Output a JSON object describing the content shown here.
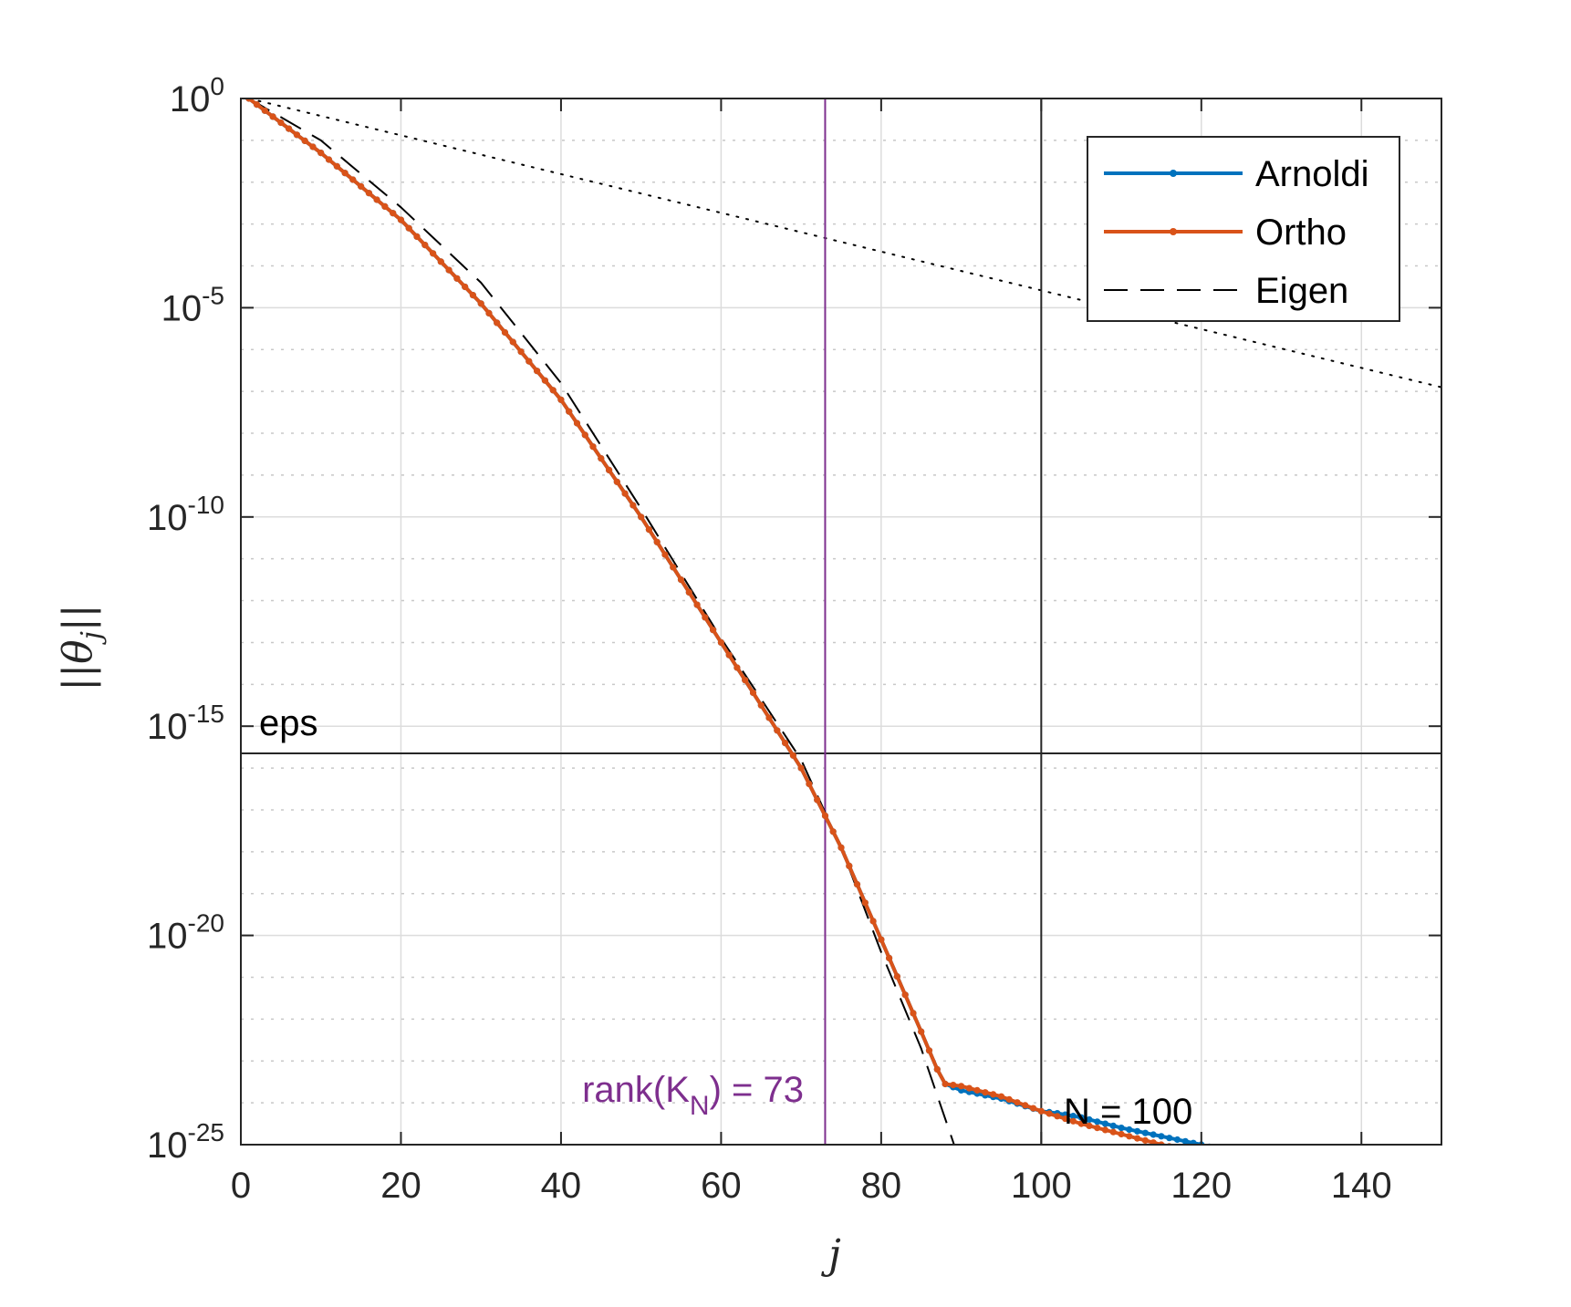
{
  "chart_data": {
    "type": "line",
    "yscale": "log",
    "xlim": [
      0,
      150
    ],
    "ylim": [
      1e-25,
      1
    ],
    "xticks": [
      0,
      20,
      40,
      60,
      80,
      100,
      120,
      140
    ],
    "xtick_labels": [
      "0",
      "20",
      "40",
      "60",
      "80",
      "100",
      "120",
      "140"
    ],
    "yticks": [
      1e-25,
      1e-20,
      1e-15,
      1e-10,
      1e-05,
      1
    ],
    "ytick_labels": [
      {
        "base": "10",
        "exp": "-25"
      },
      {
        "base": "10",
        "exp": "-20"
      },
      {
        "base": "10",
        "exp": "-15"
      },
      {
        "base": "10",
        "exp": "-10"
      },
      {
        "base": "10",
        "exp": "-5"
      },
      {
        "base": "10",
        "exp": "0"
      }
    ],
    "xlabel": "j",
    "ylabel": "||θj||",
    "ylabel_parts": {
      "bars_left": "||",
      "symbol": "θ",
      "subscript": "j",
      "bars_right": "||"
    },
    "grid": true,
    "legend": {
      "position": "top-right",
      "entries": [
        {
          "name": "Arnoldi",
          "style": "solid-dot",
          "color": "#0072BD"
        },
        {
          "name": "Ortho",
          "style": "solid-dot",
          "color": "#D95319"
        },
        {
          "name": "Eigen",
          "style": "dashed",
          "color": "#000000"
        }
      ]
    },
    "series": [
      {
        "name": "Arnoldi",
        "color": "#0072BD",
        "x": [
          1,
          10,
          20,
          30,
          40,
          50,
          60,
          70,
          75,
          80,
          85,
          87,
          88,
          90,
          95,
          100,
          102,
          105,
          110,
          115,
          120,
          125,
          130,
          135,
          140,
          145,
          149
        ],
        "log10_y": [
          0,
          -1.3,
          -2.9,
          -4.9,
          -7.2,
          -10.0,
          -13.0,
          -16.0,
          -17.9,
          -20.1,
          -22.3,
          -23.2,
          -23.55,
          -23.7,
          -23.9,
          -24.2,
          -24.25,
          -24.35,
          -24.6,
          -24.8,
          -25.0,
          -25.25,
          -25.5,
          -25.75,
          -25.95,
          -26.1,
          -26.25
        ]
      },
      {
        "name": "Ortho",
        "color": "#D95319",
        "x": [
          1,
          10,
          20,
          30,
          40,
          50,
          60,
          70,
          75,
          80,
          85,
          87,
          88,
          90,
          95,
          100,
          105,
          110,
          115,
          120,
          125,
          130,
          135,
          140,
          145,
          149
        ],
        "log10_y": [
          0,
          -1.3,
          -2.9,
          -4.9,
          -7.2,
          -10.0,
          -13.0,
          -16.0,
          -17.9,
          -20.1,
          -22.3,
          -23.2,
          -23.55,
          -23.6,
          -23.85,
          -24.2,
          -24.5,
          -24.75,
          -25.0,
          -25.2,
          -25.45,
          -25.7,
          -25.95,
          -26.1,
          -26.35,
          -26.5
        ]
      },
      {
        "name": "Eigen",
        "color": "#000000",
        "x": [
          1,
          10,
          20,
          30,
          40,
          50,
          60,
          70,
          75,
          80,
          85,
          90,
          95,
          96
        ],
        "log10_y": [
          0,
          -1.0,
          -2.6,
          -4.4,
          -6.8,
          -9.8,
          -12.9,
          -15.8,
          -17.9,
          -20.4,
          -22.7,
          -25.5,
          -28.4,
          -29.0
        ]
      }
    ],
    "reference_lines": [
      {
        "kind": "dotted",
        "color": "#000000",
        "x": [
          1,
          150
        ],
        "log10_y": [
          0,
          -6.9
        ]
      },
      {
        "kind": "horizontal",
        "label": "eps",
        "log10_y": -15.65
      },
      {
        "kind": "vertical",
        "label": "rank(K",
        "label_sub": "N",
        "label_suffix": ") = 73",
        "x": 73,
        "color": "#7E2F8E"
      },
      {
        "kind": "vertical",
        "label": "N = 100",
        "x": 100,
        "color": "#262626"
      }
    ]
  }
}
